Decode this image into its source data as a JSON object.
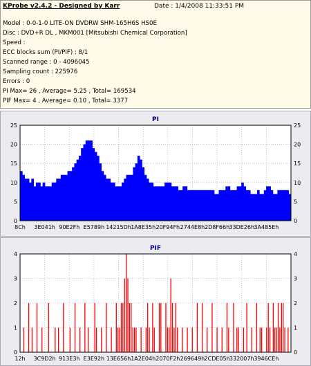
{
  "header": {
    "app_title": "KProbe v2.4.2 - Designed by Karr",
    "date": "Date : 1/4/2008 11:33:51 PM",
    "lines": [
      "Model : 0-0-1-0 LITE-ON DVDRW SHM-165H6S HS0E",
      "Disc : DVD+R DL , MKM001 [Mitsubishi Chemical Corporation]",
      "Speed :",
      "ECC blocks sum (PI/PIF) : 8/1",
      "Scanned range : 0 - 4096045",
      "Sampling count : 225976",
      "Errors : 0",
      "PI Max= 26 , Average= 5.25 , Total= 169534",
      "PIF Max= 4 , Average= 0.10 , Total= 3377"
    ]
  },
  "chart_data": [
    {
      "type": "area",
      "title": "PI",
      "ylim": [
        0,
        25
      ],
      "yticks": [
        0,
        5,
        10,
        15,
        20,
        25
      ],
      "xticks": [
        "8Ch",
        "3E041h",
        "90E2Fh",
        "E5789h",
        "14215Dh",
        "1A8E35h",
        "20F94Fh",
        "2744E8h",
        "2D8F66h",
        "33DE26h",
        "3A485Eh"
      ],
      "series_color": "#0000ff",
      "grid": true,
      "series": [
        {
          "values": [
            13,
            12,
            11,
            11,
            10,
            11,
            9,
            10,
            10,
            9,
            10,
            9,
            9,
            9,
            10,
            10,
            11,
            11,
            12,
            12,
            12,
            13,
            13,
            14,
            15,
            16,
            17,
            19,
            20,
            21,
            21,
            21,
            19,
            18,
            17,
            15,
            13,
            12,
            11,
            11,
            10,
            10,
            9,
            9,
            9,
            10,
            11,
            12,
            12,
            12,
            14,
            15,
            17,
            16,
            14,
            12,
            11,
            10,
            10,
            9,
            9,
            9,
            9,
            9,
            10,
            10,
            10,
            9,
            9,
            9,
            8,
            8,
            9,
            9,
            8,
            8,
            8,
            8,
            8,
            8,
            8,
            8,
            8,
            8,
            8,
            8,
            7,
            7,
            8,
            8,
            8,
            9,
            9,
            8,
            8,
            8,
            9,
            9,
            10,
            9,
            8,
            8,
            7,
            7,
            7,
            8,
            7,
            7,
            8,
            9,
            9,
            8,
            7,
            7,
            8,
            8,
            8,
            8,
            8,
            7
          ]
        }
      ]
    },
    {
      "type": "bar",
      "title": "PIF",
      "ylim": [
        0,
        4
      ],
      "yticks": [
        0,
        1,
        2,
        3,
        4
      ],
      "xticks": [
        "12h",
        "3C9D2h",
        "913E3h",
        "E3E92h",
        "13E656h",
        "1A2E04h",
        "2070F2h",
        "269649h",
        "2CDE05h",
        "332007h",
        "3946CEh"
      ],
      "series_color": "#ff0000",
      "grid": true,
      "series": [
        {
          "values": [
            0,
            0,
            1,
            0,
            0,
            2,
            0,
            1,
            0,
            0,
            2,
            0,
            0,
            1,
            0,
            0,
            0,
            2,
            0,
            0,
            0,
            1,
            0,
            1,
            0,
            0,
            2,
            0,
            0,
            0,
            1,
            0,
            0,
            2,
            0,
            0,
            1,
            0,
            0,
            2,
            0,
            1,
            0,
            0,
            0,
            2,
            1,
            0,
            0,
            1,
            0,
            0,
            2,
            0,
            0,
            1,
            0,
            0,
            2,
            1,
            1,
            2,
            2,
            3,
            4,
            3,
            2,
            2,
            1,
            1,
            1,
            0,
            0,
            1,
            0,
            0,
            1,
            2,
            1,
            0,
            2,
            1,
            0,
            0,
            2,
            2,
            0,
            0,
            2,
            1,
            1,
            3,
            2,
            1,
            2,
            1,
            0,
            0,
            1,
            0,
            0,
            1,
            0,
            0,
            1,
            0,
            0,
            2,
            0,
            0,
            2,
            0,
            0,
            1,
            0,
            0,
            2,
            0,
            0,
            1,
            0,
            0,
            1,
            0,
            0,
            2,
            1,
            0,
            0,
            2,
            0,
            1,
            1,
            0,
            0,
            1,
            0,
            2,
            0,
            0,
            1,
            0,
            0,
            2,
            0,
            1,
            1,
            0,
            0,
            1,
            2,
            1,
            0,
            2,
            1,
            1,
            2,
            1,
            2,
            2,
            1,
            0,
            1,
            0
          ]
        }
      ]
    }
  ]
}
